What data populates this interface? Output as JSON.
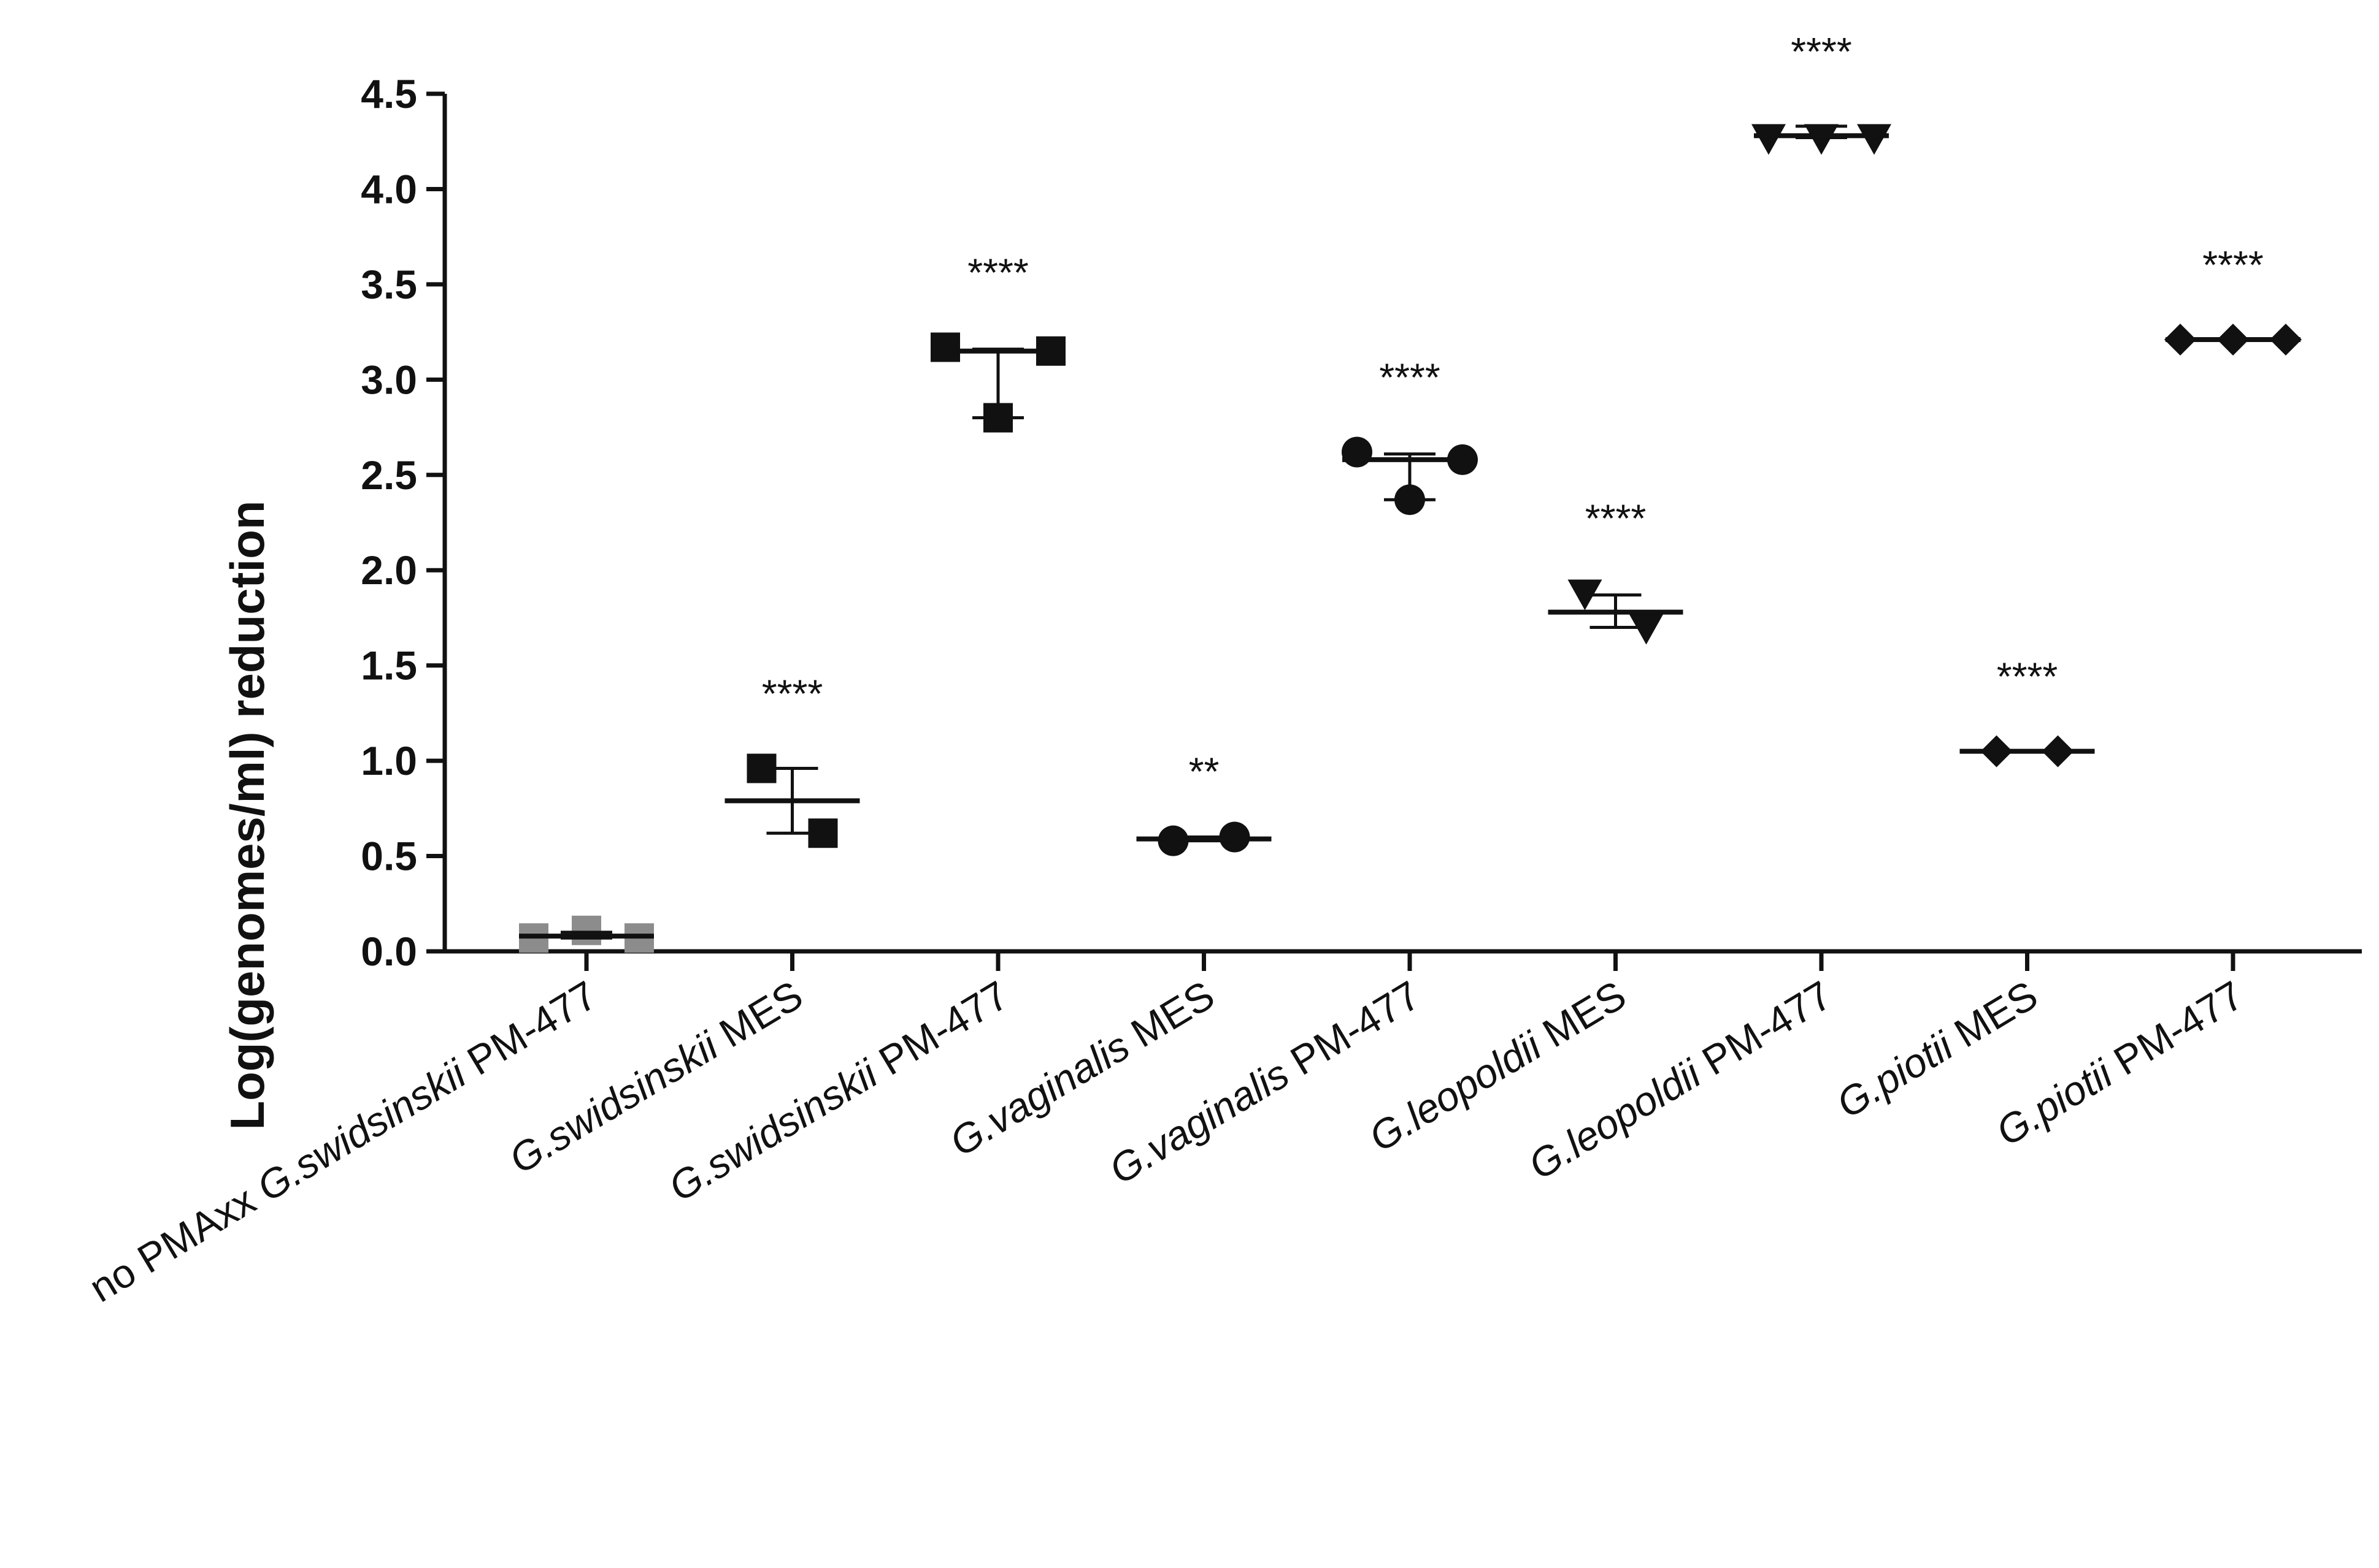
{
  "chart_data": {
    "type": "scatter",
    "title": "",
    "xlabel": "",
    "ylabel": "Log(genomes/ml) reduction",
    "ylim": [
      0,
      4.5
    ],
    "yticks": [
      "0.0",
      "0.5",
      "1.0",
      "1.5",
      "2.0",
      "2.5",
      "3.0",
      "3.5",
      "4.0",
      "4.5"
    ],
    "groups": [
      {
        "label_plain": "no PMAxx ",
        "label_italic": "G.swidsinskii",
        "label_suffix": " PM-477",
        "marker": "square",
        "color": "#8c8c8c",
        "points": [
          0.07,
          0.11,
          0.07
        ],
        "mean": 0.08,
        "sd_low": 0.07,
        "sd_high": 0.1,
        "significance": ""
      },
      {
        "label_plain": "",
        "label_italic": "G.swidsinskii",
        "label_suffix": " MES",
        "marker": "square",
        "color": "#111111",
        "points": [
          0.96,
          0.62
        ],
        "mean": 0.79,
        "sd_low": 0.62,
        "sd_high": 0.96,
        "significance": "****"
      },
      {
        "label_plain": "",
        "label_italic": "G.swidsinskii",
        "label_suffix": " PM-477",
        "marker": "square",
        "color": "#111111",
        "points": [
          3.17,
          2.8,
          3.15
        ],
        "mean": 3.15,
        "sd_low": 2.8,
        "sd_high": 3.16,
        "significance": "****"
      },
      {
        "label_plain": "",
        "label_italic": "G.vaginalis",
        "label_suffix": " MES",
        "marker": "circle",
        "color": "#111111",
        "points": [
          0.58,
          0.6
        ],
        "mean": 0.59,
        "sd_low": 0.58,
        "sd_high": 0.6,
        "significance": "**"
      },
      {
        "label_plain": "",
        "label_italic": "G.vaginalis",
        "label_suffix": " PM-477",
        "marker": "circle",
        "color": "#111111",
        "points": [
          2.62,
          2.37,
          2.58
        ],
        "mean": 2.58,
        "sd_low": 2.37,
        "sd_high": 2.61,
        "significance": "****"
      },
      {
        "label_plain": "",
        "label_italic": "G.leopoldii",
        "label_suffix": " MES",
        "marker": "triangle-down",
        "color": "#111111",
        "points": [
          1.88,
          1.7
        ],
        "mean": 1.78,
        "sd_low": 1.7,
        "sd_high": 1.87,
        "significance": "****"
      },
      {
        "label_plain": "",
        "label_italic": "G.leopoldii",
        "label_suffix": " PM-477",
        "marker": "triangle-down",
        "color": "#111111",
        "points": [
          4.27,
          4.27,
          4.27
        ],
        "mean": 4.28,
        "sd_low": 4.27,
        "sd_high": 4.33,
        "significance": "****"
      },
      {
        "label_plain": "",
        "label_italic": "G.piotii",
        "label_suffix": " MES",
        "marker": "diamond",
        "color": "#111111",
        "points": [
          1.05,
          1.05
        ],
        "mean": 1.05,
        "sd_low": 1.05,
        "sd_high": 1.05,
        "significance": "****"
      },
      {
        "label_plain": "",
        "label_italic": "G.piotii",
        "label_suffix": " PM-477",
        "marker": "diamond",
        "color": "#111111",
        "points": [
          3.21,
          3.21,
          3.21
        ],
        "mean": 3.21,
        "sd_low": 3.21,
        "sd_high": 3.21,
        "significance": "****"
      }
    ]
  }
}
